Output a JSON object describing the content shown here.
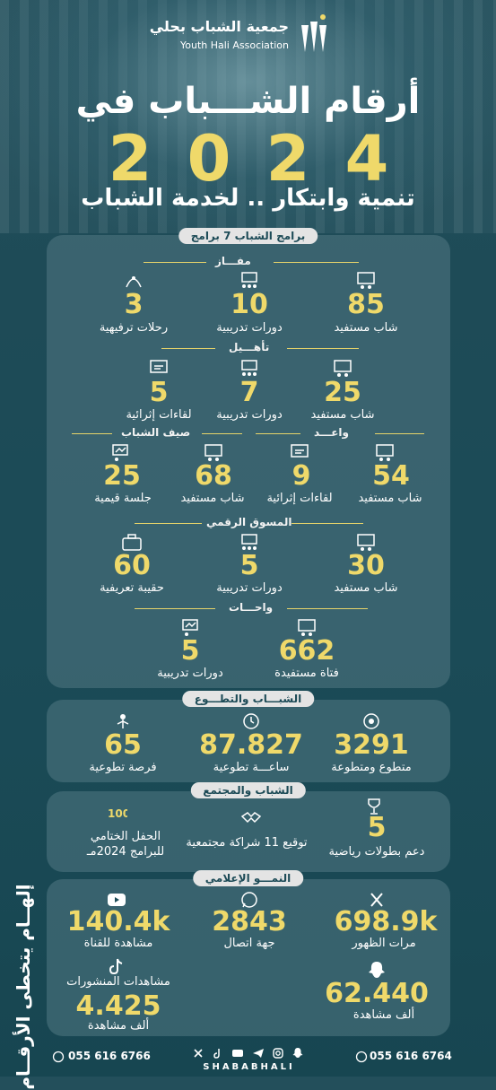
{
  "header": {
    "logo_ar": "جمعية الشباب بحلي",
    "logo_en": "Youth Hali Association",
    "title": "أرقام الشـــباب في",
    "year_digits": [
      "2",
      "0",
      "2",
      "4"
    ],
    "subtitle": "تنمية وابتكار .. لخدمة الشباب"
  },
  "programs": {
    "pill": "برامج الشباب 7 برامج",
    "mafaz": {
      "name": "مفـــاز",
      "stats": [
        {
          "value": "85",
          "label": "شاب مستفيد",
          "icon": "people-board-icon"
        },
        {
          "value": "10",
          "label": "دورات تدريبية",
          "icon": "training-icon"
        },
        {
          "value": "3",
          "label": "رحلات ترفيهية",
          "icon": "trip-icon"
        }
      ]
    },
    "taheel": {
      "name": "تأهـــيل",
      "stats": [
        {
          "value": "25",
          "label": "شاب مستفيد",
          "icon": "people-board-icon"
        },
        {
          "value": "7",
          "label": "دورات تدريبية",
          "icon": "training-icon"
        },
        {
          "value": "5",
          "label": "لقاءات إثرائية",
          "icon": "meeting-icon"
        }
      ]
    },
    "waed": {
      "name": "واعـــد",
      "stats": [
        {
          "value": "54",
          "label": "شاب مستفيد",
          "icon": "people-board-icon"
        },
        {
          "value": "9",
          "label": "لقاءات إثرائية",
          "icon": "meeting-icon"
        }
      ]
    },
    "summer": {
      "name": "صيف الشباب",
      "stats": [
        {
          "value": "68",
          "label": "شاب مستفيد",
          "icon": "people-board-icon"
        },
        {
          "value": "25",
          "label": "جلسة قيمية",
          "icon": "presentation-icon"
        }
      ]
    },
    "marketer": {
      "name": "المسوق الرقمي",
      "stats": [
        {
          "value": "30",
          "label": "شاب مستفيد",
          "icon": "people-board-icon"
        },
        {
          "value": "5",
          "label": "دورات تدريبية",
          "icon": "training-icon"
        },
        {
          "value": "60",
          "label": "حقيبة تعريفية",
          "icon": "briefcase-icon"
        }
      ]
    },
    "wahat": {
      "name": "واحـــات",
      "stats": [
        {
          "value": "662",
          "label": "فتاة مستفيدة",
          "icon": "people-board-icon"
        },
        {
          "value": "5",
          "label": "دورات تدريبية",
          "icon": "presentation-icon"
        }
      ]
    }
  },
  "volunteering": {
    "pill": "الشبـــاب والتطـــوع",
    "stats": [
      {
        "value": "3291",
        "label": "متطوع ومتطوعة",
        "icon": "volunteer-icon"
      },
      {
        "value": "87.827",
        "label": "ساعـــة تطوعية",
        "icon": "clock-icon"
      },
      {
        "value": "65",
        "label": "فرصة تطوعية",
        "icon": "opportunity-icon"
      }
    ]
  },
  "community": {
    "pill": "الشباب والمجتمع",
    "num": "5",
    "support_label": "دعم بطولات رياضية",
    "partner_label": "توقيع 11 شراكة مجتمعية",
    "closing_label_1": "الحفل الختامي",
    "closing_label_2": "للبرامج 2024مـ"
  },
  "media": {
    "pill": "النمـــو الإعلامي",
    "x_value": "698.9k",
    "x_label": "مرات الظهور",
    "wa_value": "2843",
    "wa_label": "جهة اتصال",
    "yt_value": "140.4k",
    "yt_label": "مشاهدة للقناة",
    "snap_value": "62.440",
    "snap_label": "ألف مشاهدة",
    "tt_title": "مشاهدات المنشورات",
    "tt_value": "4.425",
    "tt_label": "ألف مشاهدة"
  },
  "side_text": "إلهــام يتخطى الأرقــام",
  "footer": {
    "phone_left": "055 616 6766",
    "phone_right": "055 616 6764",
    "brand": "SHABABHALI"
  },
  "colors": {
    "accent": "#efd96a",
    "background": "#1b4b57",
    "panel": "#527883"
  }
}
